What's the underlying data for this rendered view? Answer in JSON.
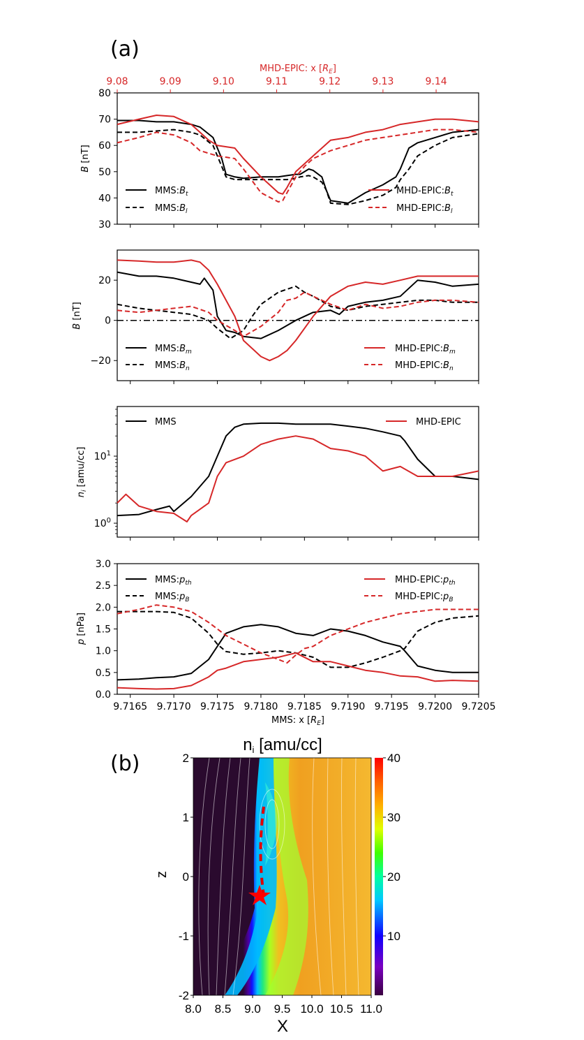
{
  "panel_a_label": "(a)",
  "panel_b_label": "(b)",
  "colors": {
    "mms": "#000000",
    "epic": "#d62728"
  },
  "chart_data": [
    {
      "type": "line",
      "id": "B-total-lmn",
      "ylabel": "B [nT]",
      "ylim": [
        30,
        80
      ],
      "yticks": [
        30,
        40,
        50,
        60,
        70,
        80
      ],
      "xlim": [
        9.71635,
        9.7205
      ],
      "top_axis": {
        "label": "MHD-EPIC: x [R_E]",
        "ticks": [
          "9.08",
          "9.09",
          "9.10",
          "9.11",
          "9.12",
          "9.13",
          "9.14"
        ],
        "values": [
          9.08,
          9.09,
          9.1,
          9.11,
          9.12,
          9.13,
          9.14
        ],
        "xlim": [
          9.08,
          9.148
        ]
      },
      "legend_left": [
        "MMS:B_t",
        "MMS:B_l"
      ],
      "legend_right": [
        "MHD-EPIC:B_t",
        "MHD-EPIC:B_l"
      ],
      "series": [
        {
          "name": "MMS:B_t",
          "color": "#000000",
          "dash": false,
          "x": [
            9.71635,
            9.7166,
            9.7168,
            9.717,
            9.7172,
            9.7173,
            9.71745,
            9.71755,
            9.7176,
            9.7177,
            9.7178,
            9.718,
            9.7182,
            9.7183,
            9.7184,
            9.71845,
            9.71855,
            9.7186,
            9.7187,
            9.71875,
            9.7188,
            9.719,
            9.7192,
            9.7194,
            9.71955,
            9.7196,
            9.7197,
            9.7198,
            9.72,
            9.7202,
            9.7205
          ],
          "y": [
            69.5,
            69.5,
            69,
            69,
            68,
            67,
            63,
            55,
            49,
            48,
            47.5,
            48,
            48,
            48.5,
            49,
            49,
            51,
            50.5,
            48,
            43,
            39,
            38,
            42,
            45,
            48,
            51,
            59,
            61,
            63,
            65,
            66
          ]
        },
        {
          "name": "MMS:B_l",
          "color": "#000000",
          "dash": true,
          "x": [
            9.71635,
            9.7166,
            9.7168,
            9.717,
            9.7172,
            9.7173,
            9.71745,
            9.71755,
            9.7176,
            9.7177,
            9.7178,
            9.718,
            9.7182,
            9.7183,
            9.7184,
            9.71845,
            9.71855,
            9.7186,
            9.7187,
            9.71875,
            9.7188,
            9.719,
            9.7192,
            9.7194,
            9.71955,
            9.7196,
            9.7197,
            9.7198,
            9.72,
            9.7202,
            9.7205
          ],
          "y": [
            65,
            65,
            65.5,
            66,
            65,
            64,
            60,
            52,
            48,
            47,
            47,
            47,
            47,
            47,
            47.5,
            48,
            48.5,
            48,
            46,
            43,
            38,
            37.5,
            39,
            41,
            44,
            47,
            51,
            56,
            60,
            63,
            64.5
          ]
        },
        {
          "name": "MHD-EPIC:B_t",
          "color": "#d62728",
          "dash": false,
          "x": [
            9.71635,
            9.7166,
            9.7168,
            9.717,
            9.7172,
            9.7173,
            9.7174,
            9.7175,
            9.7177,
            9.7178,
            9.718,
            9.7182,
            9.71825,
            9.7183,
            9.7184,
            9.7185,
            9.7186,
            9.7188,
            9.719,
            9.7192,
            9.7194,
            9.7196,
            9.7198,
            9.72,
            9.7202,
            9.7205
          ],
          "y": [
            68,
            70,
            71.5,
            71,
            68,
            65,
            62,
            60,
            59,
            55,
            48,
            42,
            41.5,
            44,
            50,
            53,
            56,
            62,
            63,
            65,
            66,
            68,
            69,
            70,
            70,
            69
          ]
        },
        {
          "name": "MHD-EPIC:B_l",
          "color": "#d62728",
          "dash": true,
          "x": [
            9.71635,
            9.7166,
            9.7168,
            9.717,
            9.7172,
            9.7173,
            9.7174,
            9.7175,
            9.7177,
            9.7178,
            9.718,
            9.7182,
            9.71825,
            9.7183,
            9.7184,
            9.7185,
            9.7186,
            9.7188,
            9.719,
            9.7192,
            9.7194,
            9.7196,
            9.7198,
            9.72,
            9.7202,
            9.7205
          ],
          "y": [
            61,
            63,
            65,
            64,
            61,
            58,
            57,
            56,
            55,
            51,
            42,
            38.5,
            39,
            42,
            48,
            52,
            55,
            58,
            60,
            62,
            63,
            64,
            65,
            66,
            66,
            65
          ]
        }
      ]
    },
    {
      "type": "line",
      "id": "B-mn",
      "ylabel": "B [nT]",
      "ylim": [
        -30,
        35
      ],
      "yticks": [
        -20,
        0,
        20
      ],
      "xlim": [
        9.71635,
        9.7205
      ],
      "zero_line": true,
      "legend_left": [
        "MMS:B_m",
        "MMS:B_n"
      ],
      "legend_right": [
        "MHD-EPIC:B_m",
        "MHD-EPIC:B_n"
      ],
      "series": [
        {
          "name": "MMS:B_m",
          "color": "#000000",
          "dash": false,
          "x": [
            9.71635,
            9.7166,
            9.7168,
            9.717,
            9.7172,
            9.7173,
            9.71735,
            9.71745,
            9.7175,
            9.7176,
            9.7177,
            9.7178,
            9.718,
            9.7182,
            9.7184,
            9.7186,
            9.7188,
            9.7189,
            9.719,
            9.7192,
            9.7194,
            9.7196,
            9.7198,
            9.72,
            9.7202,
            9.7205
          ],
          "y": [
            24,
            22,
            22,
            21,
            19,
            18,
            21,
            15,
            2,
            -5,
            -6,
            -8,
            -9,
            -5,
            0,
            4,
            5,
            3,
            7,
            9,
            10,
            12,
            20,
            19,
            17,
            18
          ]
        },
        {
          "name": "MMS:B_n",
          "color": "#000000",
          "dash": true,
          "x": [
            9.71635,
            9.7166,
            9.7168,
            9.717,
            9.7172,
            9.7174,
            9.7175,
            9.71765,
            9.7178,
            9.7179,
            9.718,
            9.7182,
            9.7184,
            9.7185,
            9.7186,
            9.7188,
            9.719,
            9.7192,
            9.7194,
            9.7196,
            9.7198,
            9.72,
            9.7202,
            9.7205
          ],
          "y": [
            8,
            6,
            5,
            4,
            3,
            0,
            -4,
            -9,
            -5,
            2,
            8,
            14,
            17,
            14,
            12,
            7,
            5,
            7,
            8,
            9,
            10,
            10,
            9,
            9
          ]
        },
        {
          "name": "MHD-EPIC:B_m",
          "color": "#d62728",
          "dash": false,
          "x": [
            9.71635,
            9.7166,
            9.7168,
            9.717,
            9.7172,
            9.7173,
            9.7174,
            9.7175,
            9.7177,
            9.7178,
            9.718,
            9.7181,
            9.7182,
            9.7183,
            9.7184,
            9.7186,
            9.7188,
            9.719,
            9.7192,
            9.7194,
            9.7196,
            9.7198,
            9.72,
            9.7202,
            9.7205
          ],
          "y": [
            30,
            29.5,
            29,
            29,
            30,
            29,
            25,
            18,
            2,
            -10,
            -18,
            -20,
            -18,
            -15,
            -10,
            2,
            12,
            17,
            19,
            18,
            20,
            22,
            22,
            22,
            22
          ]
        },
        {
          "name": "MHD-EPIC:B_n",
          "color": "#d62728",
          "dash": true,
          "x": [
            9.71635,
            9.7166,
            9.7168,
            9.717,
            9.7172,
            9.7174,
            9.7175,
            9.7177,
            9.7178,
            9.718,
            9.7182,
            9.7183,
            9.7184,
            9.7185,
            9.7186,
            9.7188,
            9.719,
            9.7192,
            9.7194,
            9.7196,
            9.7198,
            9.72,
            9.7202,
            9.7205
          ],
          "y": [
            5,
            4,
            5,
            6,
            7,
            4,
            0,
            -5,
            -8,
            -3,
            4,
            10,
            11,
            14,
            12,
            8,
            5,
            8,
            6,
            7,
            9,
            10,
            10,
            9
          ]
        }
      ]
    },
    {
      "type": "line",
      "id": "density",
      "ylabel": "n_i [amu/cc]",
      "log": true,
      "ylim": [
        0.62,
        55
      ],
      "yticks": [
        1,
        10
      ],
      "ytick_labels": [
        "10^0",
        "10^1"
      ],
      "xlim": [
        9.71635,
        9.7205
      ],
      "legend_left": [
        "MMS"
      ],
      "legend_right": [
        "MHD-EPIC"
      ],
      "series": [
        {
          "name": "MMS",
          "color": "#000000",
          "dash": false,
          "x": [
            9.71635,
            9.7166,
            9.7168,
            9.71695,
            9.717,
            9.7172,
            9.7174,
            9.7175,
            9.7176,
            9.7177,
            9.7178,
            9.718,
            9.7182,
            9.7184,
            9.7186,
            9.7188,
            9.719,
            9.7192,
            9.7194,
            9.7196,
            9.71965,
            9.7198,
            9.72,
            9.7202,
            9.7205
          ],
          "y": [
            1.3,
            1.35,
            1.6,
            1.8,
            1.5,
            2.5,
            5,
            10,
            20,
            27,
            30,
            31,
            31,
            30,
            30,
            30,
            28,
            26,
            23,
            20,
            17,
            9,
            5,
            5,
            4.5
          ]
        },
        {
          "name": "MHD-EPIC",
          "color": "#d62728",
          "dash": false,
          "x": [
            9.71635,
            9.71645,
            9.7166,
            9.7168,
            9.717,
            9.71715,
            9.7172,
            9.7174,
            9.7175,
            9.7176,
            9.7178,
            9.718,
            9.7182,
            9.7184,
            9.7186,
            9.7188,
            9.719,
            9.7192,
            9.7194,
            9.7196,
            9.7198,
            9.72,
            9.7202,
            9.7205
          ],
          "y": [
            2,
            2.7,
            1.8,
            1.5,
            1.4,
            1.05,
            1.3,
            2,
            5,
            8,
            10,
            15,
            18,
            20,
            18,
            13,
            12,
            10,
            6,
            7,
            5,
            5,
            5,
            6
          ]
        }
      ]
    },
    {
      "type": "line",
      "id": "pressure",
      "ylabel": "p [nPa]",
      "ylim": [
        0,
        3
      ],
      "yticks": [
        0.0,
        0.5,
        1.0,
        1.5,
        2.0,
        2.5,
        3.0
      ],
      "xlim": [
        9.71635,
        9.7205
      ],
      "xlabel": "MMS: x [R_E]",
      "xticks": [
        "9.7165",
        "9.7170",
        "9.7175",
        "9.7180",
        "9.7185",
        "9.7190",
        "9.7195",
        "9.7200",
        "9.7205"
      ],
      "xtick_values": [
        9.7165,
        9.717,
        9.7175,
        9.718,
        9.7185,
        9.719,
        9.7195,
        9.72,
        9.7205
      ],
      "legend_left": [
        "MMS:p_th",
        "MMS:p_B"
      ],
      "legend_right": [
        "MHD-EPIC:p_th",
        "MHD-EPIC:p_B"
      ],
      "series": [
        {
          "name": "MMS:p_th",
          "color": "#000000",
          "dash": false,
          "x": [
            9.71635,
            9.7166,
            9.7168,
            9.717,
            9.7172,
            9.7174,
            9.7175,
            9.7176,
            9.7178,
            9.718,
            9.7182,
            9.7184,
            9.7186,
            9.7188,
            9.719,
            9.7192,
            9.7194,
            9.7196,
            9.71965,
            9.7198,
            9.72,
            9.7202,
            9.7205
          ],
          "y": [
            0.33,
            0.35,
            0.38,
            0.4,
            0.48,
            0.8,
            1.1,
            1.4,
            1.55,
            1.6,
            1.55,
            1.4,
            1.35,
            1.5,
            1.45,
            1.35,
            1.2,
            1.1,
            1.0,
            0.65,
            0.55,
            0.5,
            0.5
          ]
        },
        {
          "name": "MMS:p_B",
          "color": "#000000",
          "dash": true,
          "x": [
            9.71635,
            9.7166,
            9.7168,
            9.717,
            9.7172,
            9.7174,
            9.7175,
            9.7176,
            9.7178,
            9.718,
            9.7182,
            9.7184,
            9.7186,
            9.7188,
            9.719,
            9.7192,
            9.7194,
            9.7196,
            9.71965,
            9.7198,
            9.72,
            9.7202,
            9.7205
          ],
          "y": [
            1.9,
            1.9,
            1.9,
            1.88,
            1.75,
            1.4,
            1.15,
            0.98,
            0.92,
            0.95,
            1.0,
            0.95,
            0.85,
            0.62,
            0.62,
            0.72,
            0.85,
            1.0,
            1.05,
            1.45,
            1.65,
            1.75,
            1.8
          ]
        },
        {
          "name": "MHD-EPIC:p_th",
          "color": "#d62728",
          "dash": false,
          "x": [
            9.71635,
            9.7166,
            9.7168,
            9.717,
            9.7172,
            9.7174,
            9.7175,
            9.7176,
            9.7178,
            9.718,
            9.7182,
            9.7184,
            9.7186,
            9.7188,
            9.719,
            9.7192,
            9.7194,
            9.7196,
            9.7198,
            9.72,
            9.7202,
            9.7205
          ],
          "y": [
            0.15,
            0.13,
            0.12,
            0.13,
            0.2,
            0.4,
            0.55,
            0.6,
            0.75,
            0.8,
            0.85,
            0.95,
            0.75,
            0.75,
            0.65,
            0.55,
            0.5,
            0.42,
            0.4,
            0.3,
            0.32,
            0.3
          ]
        },
        {
          "name": "MHD-EPIC:p_B",
          "color": "#d62728",
          "dash": true,
          "x": [
            9.71635,
            9.7166,
            9.7168,
            9.717,
            9.7172,
            9.7174,
            9.7175,
            9.7176,
            9.7178,
            9.718,
            9.7182,
            9.7183,
            9.7184,
            9.7185,
            9.7186,
            9.7188,
            9.719,
            9.7192,
            9.7194,
            9.7196,
            9.7198,
            9.72,
            9.7202,
            9.7205
          ],
          "y": [
            1.85,
            1.95,
            2.05,
            2.0,
            1.9,
            1.65,
            1.5,
            1.35,
            1.15,
            0.95,
            0.8,
            0.72,
            0.9,
            1.05,
            1.1,
            1.35,
            1.5,
            1.65,
            1.75,
            1.85,
            1.9,
            1.95,
            1.95,
            1.95
          ]
        }
      ]
    },
    {
      "type": "heatmap",
      "id": "density-map",
      "title": "n_i [amu/cc]",
      "xlabel": "X",
      "ylabel": "z",
      "xlim": [
        8.0,
        11.0
      ],
      "ylim": [
        -2,
        2
      ],
      "xticks": [
        "8.0",
        "8.5",
        "9.0",
        "9.5",
        "10.0",
        "10.5",
        "11.0"
      ],
      "yticks": [
        "2",
        "1",
        "0",
        "-1",
        "-2"
      ],
      "colorbar": {
        "min": 0,
        "max": 40,
        "ticks": [
          "40",
          "30",
          "20",
          "10"
        ]
      },
      "marker": {
        "type": "star",
        "x": 9.1,
        "z": -0.35
      }
    }
  ]
}
